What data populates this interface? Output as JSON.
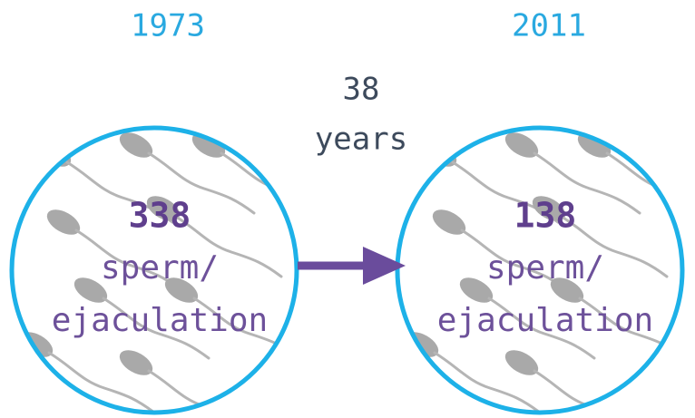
{
  "panels": [
    {
      "year": 1973,
      "count": 338,
      "label_lines": [
        "sperm/",
        "ejaculation"
      ]
    },
    {
      "year": 2011,
      "count": 138,
      "label_lines": [
        "sperm/",
        "ejaculation"
      ]
    }
  ],
  "gap_lines": [
    38,
    "years"
  ]
}
